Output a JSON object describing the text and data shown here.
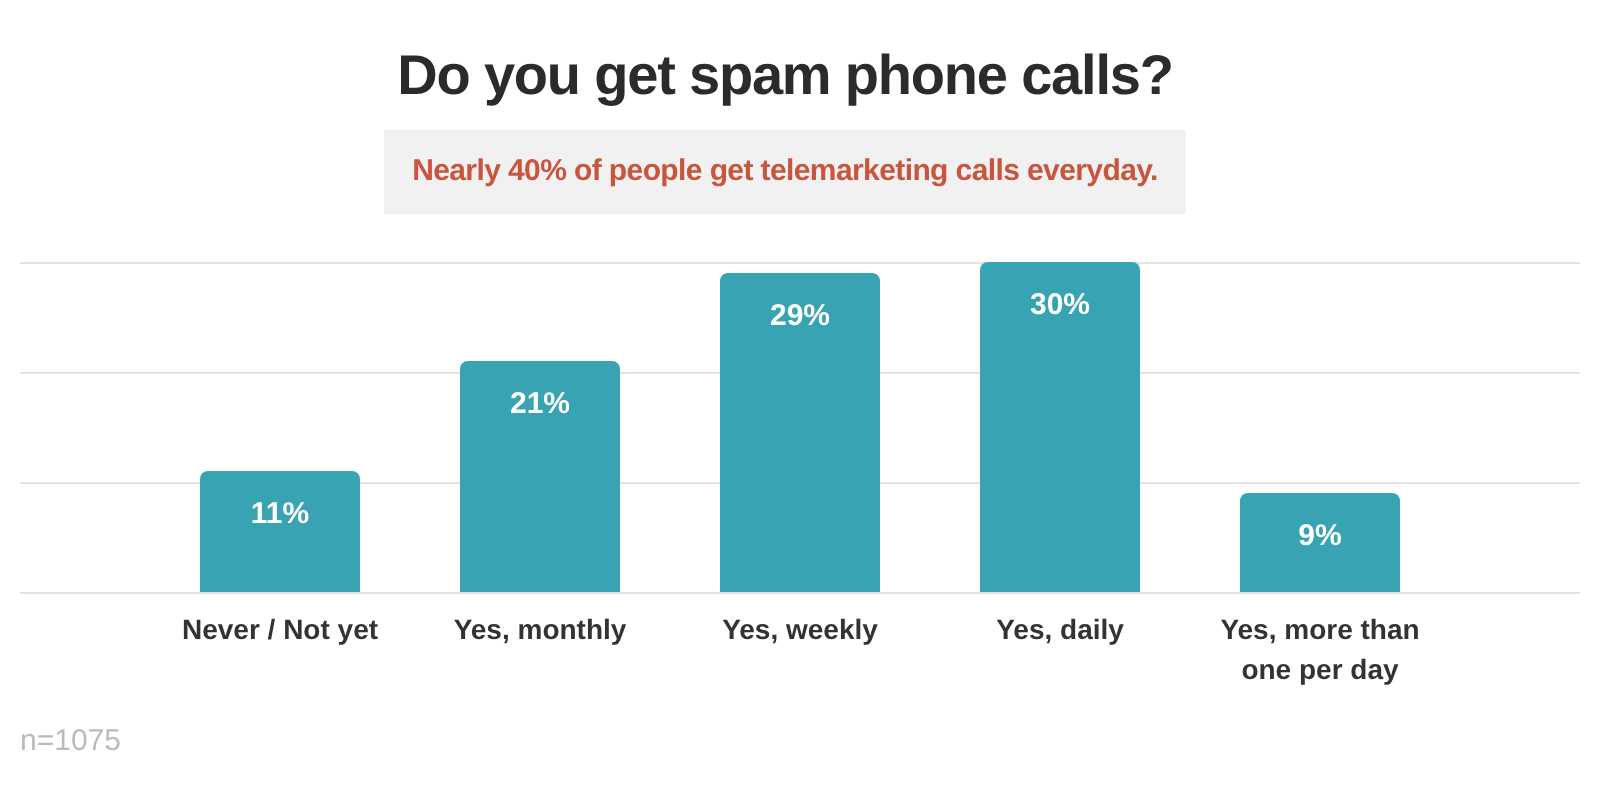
{
  "chart_data": {
    "type": "bar",
    "title": "Do you get spam phone calls?",
    "subtitle": "Nearly 40% of people get telemarketing calls everyday.",
    "categories": [
      "Never / Not yet",
      "Yes, monthly",
      "Yes, weekly",
      "Yes, daily",
      "Yes, more than one per day"
    ],
    "values": [
      11,
      21,
      29,
      30,
      9
    ],
    "color": "#38a3b2",
    "value_labels": [
      "11%",
      "21%",
      "29%",
      "30%",
      "9%"
    ],
    "ylim": [
      0,
      30
    ],
    "yticks": [
      {
        "value": 0,
        "label": null
      },
      {
        "value": 10,
        "label": null
      },
      {
        "value": 20,
        "label": null
      },
      {
        "value": 30,
        "label": null
      }
    ],
    "grid": "y",
    "tick_labels": "x",
    "legend": false,
    "annotations": [
      "n=1075"
    ]
  }
}
